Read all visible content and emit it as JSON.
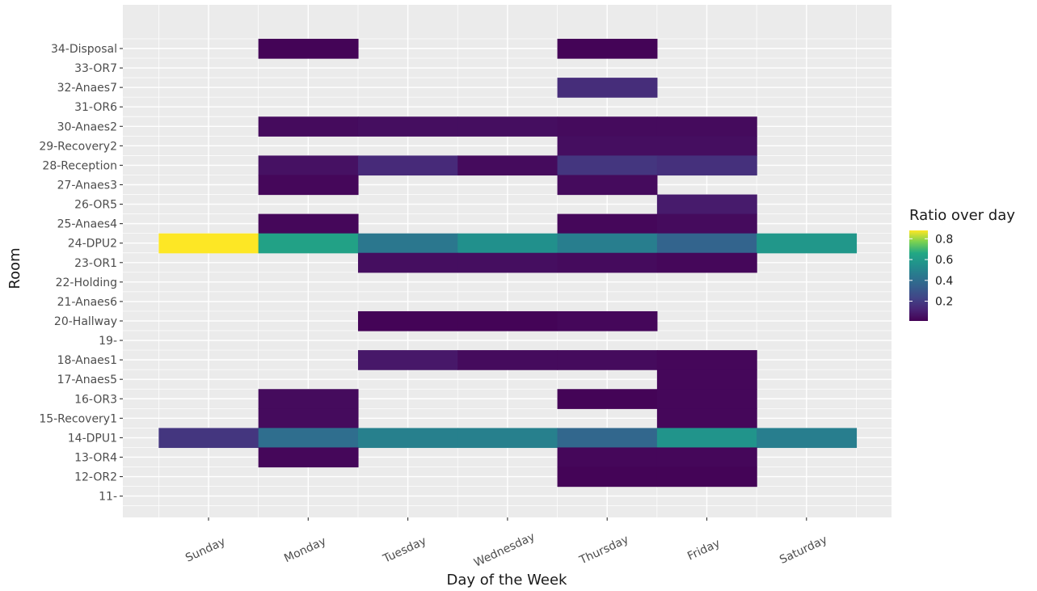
{
  "chart_data": {
    "type": "heatmap",
    "xlabel": "Day of the Week",
    "ylabel": "Room",
    "x_categories": [
      "Sunday",
      "Monday",
      "Tuesday",
      "Wednesday",
      "Thursday",
      "Friday",
      "Saturday"
    ],
    "y_categories": [
      "11-",
      "12-OR2",
      "13-OR4",
      "14-DPU1",
      "15-Recovery1",
      "16-OR3",
      "17-Anaes5",
      "18-Anaes1",
      "19-",
      "20-Hallway",
      "21-Anaes6",
      "22-Holding",
      "23-OR1",
      "24-DPU2",
      "25-Anaes4",
      "26-OR5",
      "27-Anaes3",
      "28-Reception",
      "29-Recovery2",
      "30-Anaes2",
      "31-OR6",
      "32-Anaes7",
      "33-OR7",
      "34-Disposal"
    ],
    "cells": [
      {
        "room": "34-Disposal",
        "day": "Monday",
        "value": 0.02
      },
      {
        "room": "34-Disposal",
        "day": "Thursday",
        "value": 0.02
      },
      {
        "room": "32-Anaes7",
        "day": "Thursday",
        "value": 0.15
      },
      {
        "room": "30-Anaes2",
        "day": "Monday",
        "value": 0.04
      },
      {
        "room": "30-Anaes2",
        "day": "Tuesday",
        "value": 0.05
      },
      {
        "room": "30-Anaes2",
        "day": "Wednesday",
        "value": 0.05
      },
      {
        "room": "30-Anaes2",
        "day": "Thursday",
        "value": 0.04
      },
      {
        "room": "30-Anaes2",
        "day": "Friday",
        "value": 0.04
      },
      {
        "room": "29-Recovery2",
        "day": "Thursday",
        "value": 0.05
      },
      {
        "room": "29-Recovery2",
        "day": "Friday",
        "value": 0.05
      },
      {
        "room": "28-Reception",
        "day": "Monday",
        "value": 0.06
      },
      {
        "room": "28-Reception",
        "day": "Tuesday",
        "value": 0.14
      },
      {
        "room": "28-Reception",
        "day": "Wednesday",
        "value": 0.04
      },
      {
        "room": "28-Reception",
        "day": "Thursday",
        "value": 0.18
      },
      {
        "room": "28-Reception",
        "day": "Friday",
        "value": 0.16
      },
      {
        "room": "27-Anaes3",
        "day": "Monday",
        "value": 0.03
      },
      {
        "room": "27-Anaes3",
        "day": "Thursday",
        "value": 0.04
      },
      {
        "room": "26-OR5",
        "day": "Friday",
        "value": 0.09
      },
      {
        "room": "25-Anaes4",
        "day": "Monday",
        "value": 0.03
      },
      {
        "room": "25-Anaes4",
        "day": "Thursday",
        "value": 0.03
      },
      {
        "room": "25-Anaes4",
        "day": "Friday",
        "value": 0.04
      },
      {
        "room": "24-DPU2",
        "day": "Sunday",
        "value": 0.88
      },
      {
        "room": "24-DPU2",
        "day": "Monday",
        "value": 0.63
      },
      {
        "room": "24-DPU2",
        "day": "Tuesday",
        "value": 0.44
      },
      {
        "room": "24-DPU2",
        "day": "Wednesday",
        "value": 0.55
      },
      {
        "room": "24-DPU2",
        "day": "Thursday",
        "value": 0.47
      },
      {
        "room": "24-DPU2",
        "day": "Friday",
        "value": 0.36
      },
      {
        "room": "24-DPU2",
        "day": "Saturday",
        "value": 0.58
      },
      {
        "room": "23-OR1",
        "day": "Tuesday",
        "value": 0.05
      },
      {
        "room": "23-OR1",
        "day": "Wednesday",
        "value": 0.05
      },
      {
        "room": "23-OR1",
        "day": "Thursday",
        "value": 0.04
      },
      {
        "room": "23-OR1",
        "day": "Friday",
        "value": 0.03
      },
      {
        "room": "20-Hallway",
        "day": "Tuesday",
        "value": 0.02
      },
      {
        "room": "20-Hallway",
        "day": "Wednesday",
        "value": 0.02
      },
      {
        "room": "20-Hallway",
        "day": "Thursday",
        "value": 0.03
      },
      {
        "room": "18-Anaes1",
        "day": "Tuesday",
        "value": 0.08
      },
      {
        "room": "18-Anaes1",
        "day": "Wednesday",
        "value": 0.04
      },
      {
        "room": "18-Anaes1",
        "day": "Thursday",
        "value": 0.04
      },
      {
        "room": "18-Anaes1",
        "day": "Friday",
        "value": 0.03
      },
      {
        "room": "17-Anaes5",
        "day": "Friday",
        "value": 0.03
      },
      {
        "room": "16-OR3",
        "day": "Monday",
        "value": 0.04
      },
      {
        "room": "16-OR3",
        "day": "Thursday",
        "value": 0.02
      },
      {
        "room": "16-OR3",
        "day": "Friday",
        "value": 0.03
      },
      {
        "room": "15-Recovery1",
        "day": "Monday",
        "value": 0.04
      },
      {
        "room": "15-Recovery1",
        "day": "Friday",
        "value": 0.03
      },
      {
        "room": "14-DPU1",
        "day": "Sunday",
        "value": 0.18
      },
      {
        "room": "14-DPU1",
        "day": "Monday",
        "value": 0.4
      },
      {
        "room": "14-DPU1",
        "day": "Tuesday",
        "value": 0.48
      },
      {
        "room": "14-DPU1",
        "day": "Wednesday",
        "value": 0.48
      },
      {
        "room": "14-DPU1",
        "day": "Thursday",
        "value": 0.37
      },
      {
        "room": "14-DPU1",
        "day": "Friday",
        "value": 0.57
      },
      {
        "room": "14-DPU1",
        "day": "Saturday",
        "value": 0.47
      },
      {
        "room": "13-OR4",
        "day": "Monday",
        "value": 0.03
      },
      {
        "room": "13-OR4",
        "day": "Thursday",
        "value": 0.03
      },
      {
        "room": "13-OR4",
        "day": "Friday",
        "value": 0.03
      },
      {
        "room": "12-OR2",
        "day": "Thursday",
        "value": 0.02
      },
      {
        "room": "12-OR2",
        "day": "Friday",
        "value": 0.02
      }
    ],
    "legend": {
      "title": "Ratio over day",
      "placement": "right",
      "ticks": [
        0.2,
        0.4,
        0.6,
        0.8
      ],
      "tick_labels": [
        "0.2",
        "0.4",
        "0.6",
        "0.8"
      ],
      "range": [
        0.01,
        0.88
      ],
      "colormap": "viridis"
    },
    "panel_background": "#ebebeb",
    "grid_color": "#ffffff"
  }
}
